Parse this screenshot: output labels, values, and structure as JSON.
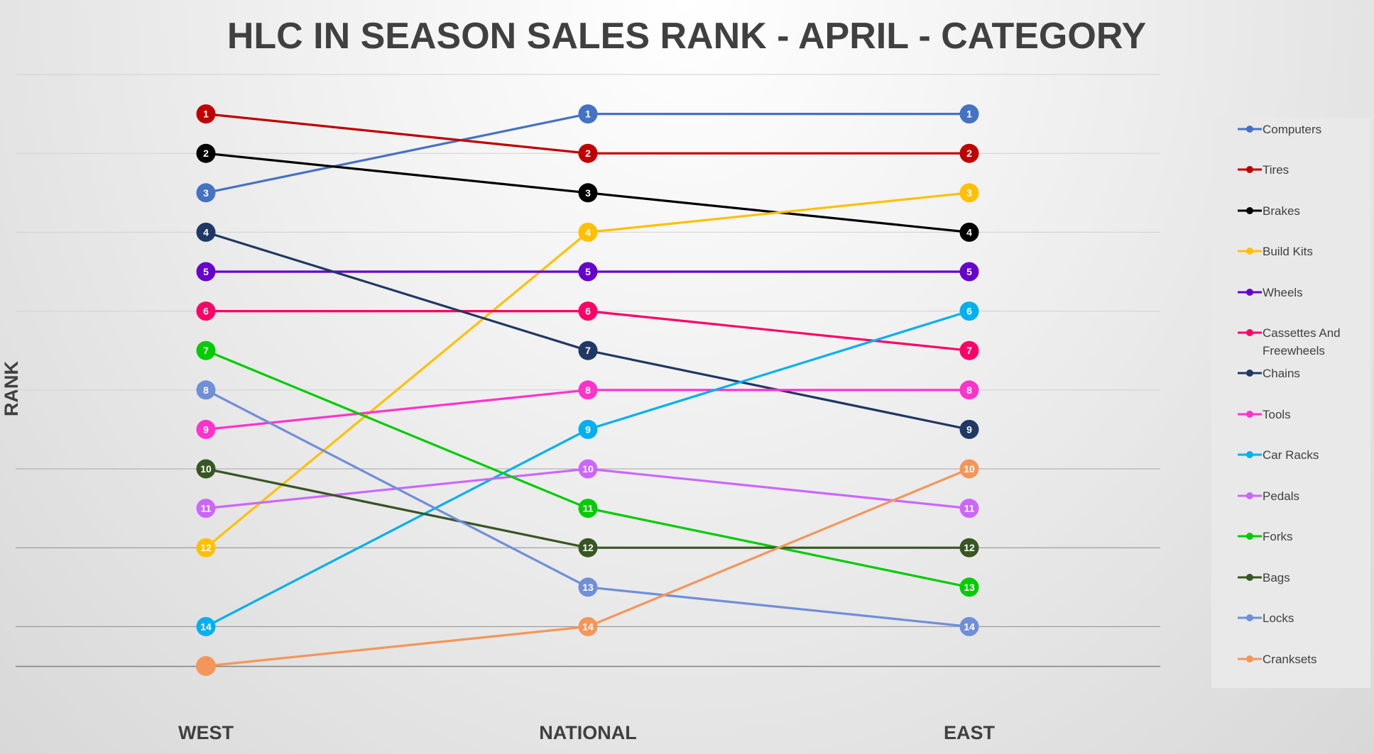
{
  "chart_data": {
    "type": "line",
    "title": "HLC IN SEASON SALES RANK - APRIL - CATEGORY",
    "xlabel": "",
    "ylabel": "RANK",
    "categories": [
      "WEST",
      "NATIONAL",
      "EAST"
    ],
    "ylim": [
      0,
      15
    ],
    "y_reversed": true,
    "grid": true,
    "legend_position": "right",
    "series": [
      {
        "name": "Computers",
        "color": "#4472C4",
        "values": [
          3,
          1,
          1
        ]
      },
      {
        "name": "Tires",
        "color": "#C00000",
        "values": [
          1,
          2,
          2
        ]
      },
      {
        "name": "Brakes",
        "color": "#000000",
        "values": [
          2,
          3,
          4
        ]
      },
      {
        "name": "Build Kits",
        "color": "#FFC000",
        "values": [
          12,
          4,
          3
        ]
      },
      {
        "name": "Wheels",
        "color": "#6600CC",
        "values": [
          5,
          5,
          5
        ]
      },
      {
        "name": "Cassettes And Freewheels",
        "color": "#FF0066",
        "values": [
          6,
          6,
          7
        ]
      },
      {
        "name": "Chains",
        "color": "#203864",
        "values": [
          4,
          7,
          9
        ]
      },
      {
        "name": "Tools",
        "color": "#FF33CC",
        "values": [
          9,
          8,
          8
        ]
      },
      {
        "name": "Car Racks",
        "color": "#00B0F0",
        "values": [
          14,
          9,
          6
        ]
      },
      {
        "name": "Pedals",
        "color": "#CC66FF",
        "values": [
          11,
          10,
          11
        ]
      },
      {
        "name": "Forks",
        "color": "#00CC00",
        "values": [
          7,
          11,
          13
        ]
      },
      {
        "name": "Bags",
        "color": "#375623",
        "values": [
          10,
          12,
          12
        ]
      },
      {
        "name": "Locks",
        "color": "#6F8FD8",
        "values": [
          8,
          13,
          14
        ]
      },
      {
        "name": "Cranksets",
        "color": "#F4965A",
        "values": [
          15,
          14,
          10
        ]
      }
    ],
    "unlabeled_points": [
      {
        "series": "Cranksets",
        "category": "WEST"
      }
    ]
  }
}
